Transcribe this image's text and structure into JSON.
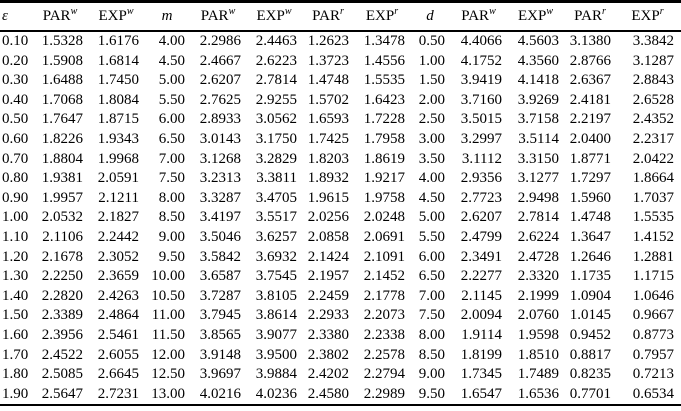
{
  "colors": {
    "background": "#ffffff",
    "text": "#000000",
    "rule": "#000000"
  },
  "table": {
    "columns": [
      {
        "base": "ε",
        "sup": ""
      },
      {
        "base": "PAR",
        "sup": "w"
      },
      {
        "base": "EXP",
        "sup": "w"
      },
      {
        "base": "m",
        "sup": ""
      },
      {
        "base": "PAR",
        "sup": "w"
      },
      {
        "base": "EXP",
        "sup": "w"
      },
      {
        "base": "PAR",
        "sup": "r"
      },
      {
        "base": "EXP",
        "sup": "r"
      },
      {
        "base": "d",
        "sup": ""
      },
      {
        "base": "PAR",
        "sup": "w"
      },
      {
        "base": "EXP",
        "sup": "w"
      },
      {
        "base": "PAR",
        "sup": "r"
      },
      {
        "base": "EXP",
        "sup": "r"
      }
    ],
    "rows": [
      [
        "0.10",
        "1.5328",
        "1.6176",
        "4.00",
        "2.2986",
        "2.4463",
        "1.2623",
        "1.3478",
        "0.50",
        "4.4066",
        "4.5603",
        "3.1380",
        "3.3842"
      ],
      [
        "0.20",
        "1.5908",
        "1.6814",
        "4.50",
        "2.4667",
        "2.6223",
        "1.3723",
        "1.4556",
        "1.00",
        "4.1752",
        "4.3560",
        "2.8766",
        "3.1287"
      ],
      [
        "0.30",
        "1.6488",
        "1.7450",
        "5.00",
        "2.6207",
        "2.7814",
        "1.4748",
        "1.5535",
        "1.50",
        "3.9419",
        "4.1418",
        "2.6367",
        "2.8843"
      ],
      [
        "0.40",
        "1.7068",
        "1.8084",
        "5.50",
        "2.7625",
        "2.9255",
        "1.5702",
        "1.6423",
        "2.00",
        "3.7160",
        "3.9269",
        "2.4181",
        "2.6528"
      ],
      [
        "0.50",
        "1.7647",
        "1.8715",
        "6.00",
        "2.8933",
        "3.0562",
        "1.6593",
        "1.7228",
        "2.50",
        "3.5015",
        "3.7158",
        "2.2197",
        "2.4352"
      ],
      [
        "0.60",
        "1.8226",
        "1.9343",
        "6.50",
        "3.0143",
        "3.1750",
        "1.7425",
        "1.7958",
        "3.00",
        "3.2997",
        "3.5114",
        "2.0400",
        "2.2317"
      ],
      [
        "0.70",
        "1.8804",
        "1.9968",
        "7.00",
        "3.1268",
        "3.2829",
        "1.8203",
        "1.8619",
        "3.50",
        "3.1112",
        "3.3150",
        "1.8771",
        "2.0422"
      ],
      [
        "0.80",
        "1.9381",
        "2.0591",
        "7.50",
        "3.2313",
        "3.3811",
        "1.8932",
        "1.9217",
        "4.00",
        "2.9356",
        "3.1277",
        "1.7297",
        "1.8664"
      ],
      [
        "0.90",
        "1.9957",
        "2.1211",
        "8.00",
        "3.3287",
        "3.4705",
        "1.9615",
        "1.9758",
        "4.50",
        "2.7723",
        "2.9498",
        "1.5960",
        "1.7037"
      ],
      [
        "1.00",
        "2.0532",
        "2.1827",
        "8.50",
        "3.4197",
        "3.5517",
        "2.0256",
        "2.0248",
        "5.00",
        "2.6207",
        "2.7814",
        "1.4748",
        "1.5535"
      ],
      [
        "1.10",
        "2.1106",
        "2.2442",
        "9.00",
        "3.5046",
        "3.6257",
        "2.0858",
        "2.0691",
        "5.50",
        "2.4799",
        "2.6224",
        "1.3647",
        "1.4152"
      ],
      [
        "1.20",
        "2.1678",
        "2.3052",
        "9.50",
        "3.5842",
        "3.6932",
        "2.1424",
        "2.1091",
        "6.00",
        "2.3491",
        "2.4728",
        "1.2646",
        "1.2881"
      ],
      [
        "1.30",
        "2.2250",
        "2.3659",
        "10.00",
        "3.6587",
        "3.7545",
        "2.1957",
        "2.1452",
        "6.50",
        "2.2277",
        "2.3320",
        "1.1735",
        "1.1715"
      ],
      [
        "1.40",
        "2.2820",
        "2.4263",
        "10.50",
        "3.7287",
        "3.8105",
        "2.2459",
        "2.1778",
        "7.00",
        "2.1145",
        "2.1999",
        "1.0904",
        "1.0646"
      ],
      [
        "1.50",
        "2.3389",
        "2.4864",
        "11.00",
        "3.7945",
        "3.8614",
        "2.2933",
        "2.2073",
        "7.50",
        "2.0094",
        "2.0760",
        "1.0145",
        "0.9667"
      ],
      [
        "1.60",
        "2.3956",
        "2.5461",
        "11.50",
        "3.8565",
        "3.9077",
        "2.3380",
        "2.2338",
        "8.00",
        "1.9114",
        "1.9598",
        "0.9452",
        "0.8773"
      ],
      [
        "1.70",
        "2.4522",
        "2.6055",
        "12.00",
        "3.9148",
        "3.9500",
        "2.3802",
        "2.2578",
        "8.50",
        "1.8199",
        "1.8510",
        "0.8817",
        "0.7957"
      ],
      [
        "1.80",
        "2.5085",
        "2.6645",
        "12.50",
        "3.9697",
        "3.9884",
        "2.4202",
        "2.2794",
        "9.00",
        "1.7345",
        "1.7489",
        "0.8235",
        "0.7213"
      ],
      [
        "1.90",
        "2.5647",
        "2.7231",
        "13.00",
        "4.0216",
        "4.0236",
        "2.4580",
        "2.2989",
        "9.50",
        "1.6547",
        "1.6536",
        "0.7701",
        "0.6534"
      ]
    ]
  }
}
